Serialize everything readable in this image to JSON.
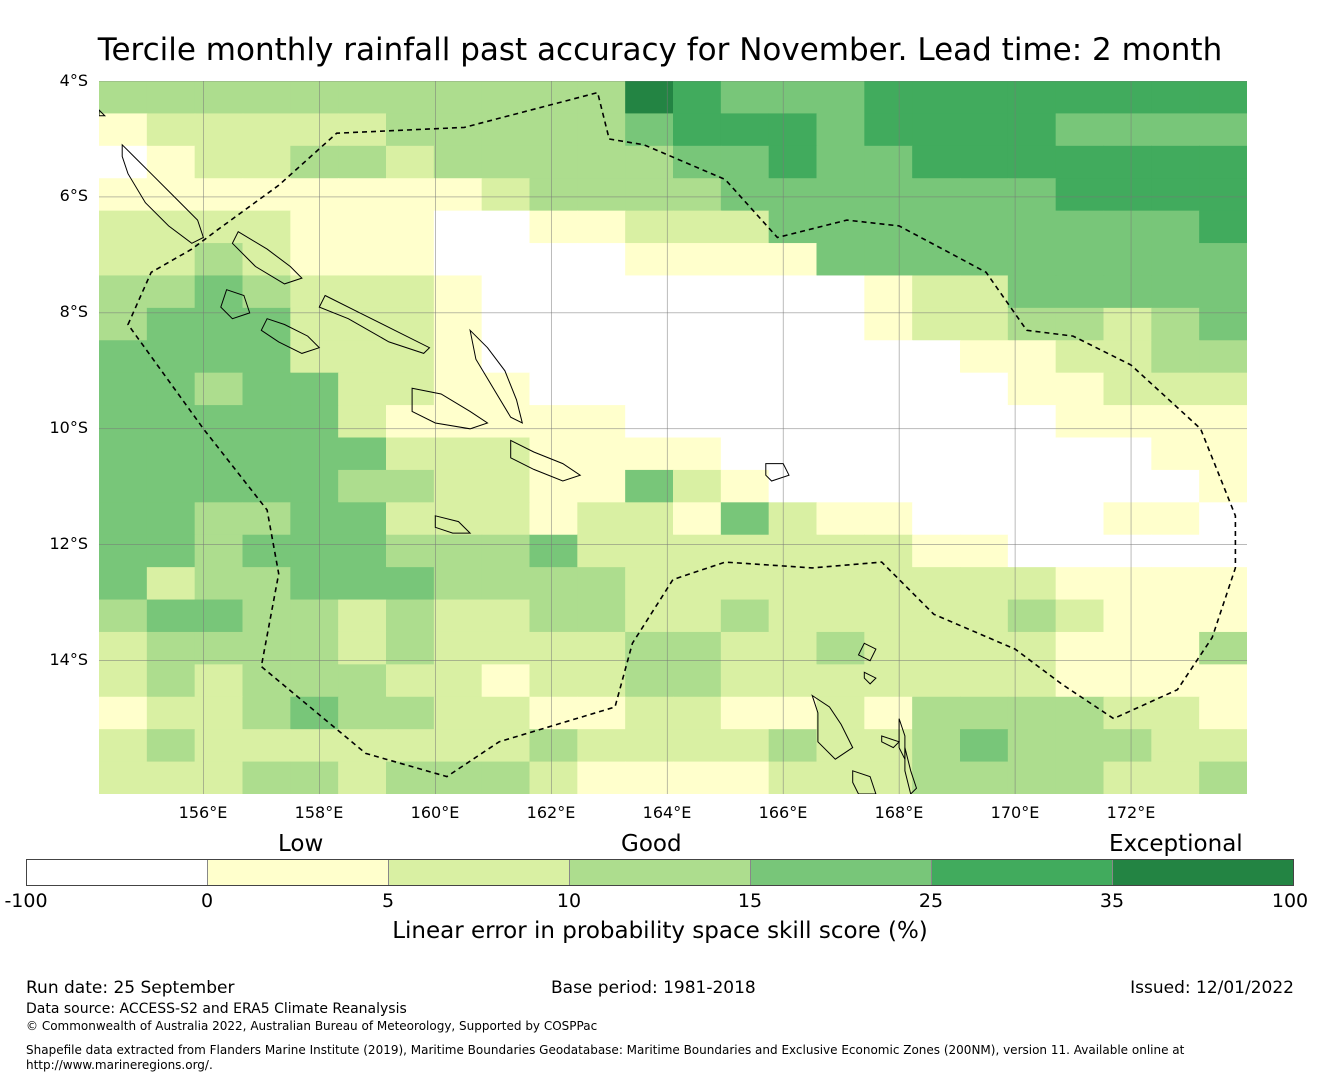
{
  "title": "Tercile monthly rainfall past accuracy for November. Lead time: 2 month",
  "map": {
    "lat_labels": [
      "4°S",
      "6°S",
      "8°S",
      "10°S",
      "12°S",
      "14°S"
    ],
    "lon_labels": [
      "156°E",
      "158°E",
      "160°E",
      "162°E",
      "164°E",
      "166°E",
      "168°E",
      "170°E",
      "172°E"
    ],
    "lat_values": [
      -4,
      -6,
      -8,
      -10,
      -12,
      -14
    ],
    "lon_values": [
      156,
      158,
      160,
      162,
      164,
      166,
      168,
      170,
      172
    ],
    "extent": {
      "lon_min": 154.2,
      "lon_max": 174.0,
      "lat_top": -4.0,
      "lat_bottom": -16.3
    },
    "grid_cols": 24,
    "grid_rows": 22,
    "grid_note": "class per cell: 0=<0, 1=0-5, 2=5-10, 3=10-15, 4=15-25, 5=25-35, 6=35-100",
    "grid": [
      "333333333336544455555555",
      "122222333334555455554444",
      "012233233333445445555555",
      "111111112333344444445555",
      "222211100112224444444445",
      "223211100001111444444444",
      "334322210000000012244444",
      "344422210000000012233234",
      "444422210000000000112233",
      "443442211000000000011222",
      "444442111110000000001111",
      "444444222111100000000011",
      "444443322114210000000001",
      "443344222122142110000110",
      "443444333422222221100000",
      "423344433332222222221111",
      "344332322332232222232111",
      "233332322223322322221113",
      "232333221223322222221111",
      "122343322112211213333221",
      "232222222322223223433322",
      "222332333211112223333223"
    ],
    "eez_boundary": [
      [
        154.7,
        -8.2
      ],
      [
        155.1,
        -7.3
      ],
      [
        155.8,
        -6.9
      ],
      [
        156.2,
        -6.6
      ],
      [
        157.3,
        -5.8
      ],
      [
        158.3,
        -4.9
      ],
      [
        160.5,
        -4.8
      ],
      [
        162.8,
        -4.2
      ],
      [
        163.0,
        -5.0
      ],
      [
        163.6,
        -5.1
      ],
      [
        165.0,
        -5.7
      ],
      [
        165.9,
        -6.7
      ],
      [
        167.1,
        -6.4
      ],
      [
        168.0,
        -6.5
      ],
      [
        169.5,
        -7.3
      ],
      [
        170.2,
        -8.3
      ],
      [
        171.0,
        -8.4
      ],
      [
        172.0,
        -8.9
      ],
      [
        173.2,
        -10.0
      ],
      [
        173.8,
        -11.5
      ],
      [
        173.8,
        -12.4
      ],
      [
        173.4,
        -13.6
      ],
      [
        172.8,
        -14.5
      ],
      [
        171.7,
        -15.0
      ],
      [
        170.8,
        -14.4
      ],
      [
        170.0,
        -13.8
      ],
      [
        168.6,
        -13.2
      ],
      [
        167.7,
        -12.3
      ],
      [
        166.5,
        -12.4
      ],
      [
        165.0,
        -12.3
      ],
      [
        164.1,
        -12.6
      ],
      [
        163.4,
        -13.7
      ],
      [
        163.1,
        -14.8
      ],
      [
        161.1,
        -15.4
      ],
      [
        160.2,
        -16.0
      ],
      [
        158.8,
        -15.6
      ],
      [
        157.0,
        -14.1
      ],
      [
        157.3,
        -12.5
      ],
      [
        157.1,
        -11.4
      ],
      [
        156.0,
        -10.0
      ],
      [
        154.7,
        -8.2
      ]
    ],
    "islands": [
      {
        "name": "Bougainville",
        "points": [
          [
            154.6,
            -5.1
          ],
          [
            154.8,
            -5.3
          ],
          [
            155.1,
            -5.6
          ],
          [
            155.5,
            -6.0
          ],
          [
            155.9,
            -6.4
          ],
          [
            156.0,
            -6.7
          ],
          [
            155.8,
            -6.8
          ],
          [
            155.4,
            -6.5
          ],
          [
            155.0,
            -6.1
          ],
          [
            154.7,
            -5.6
          ],
          [
            154.6,
            -5.3
          ]
        ]
      },
      {
        "name": "Choiseul",
        "points": [
          [
            156.6,
            -6.6
          ],
          [
            157.1,
            -6.9
          ],
          [
            157.5,
            -7.2
          ],
          [
            157.7,
            -7.4
          ],
          [
            157.4,
            -7.5
          ],
          [
            156.9,
            -7.2
          ],
          [
            156.5,
            -6.8
          ]
        ]
      },
      {
        "name": "Santa Isabel",
        "points": [
          [
            158.1,
            -7.7
          ],
          [
            158.7,
            -8.0
          ],
          [
            159.3,
            -8.3
          ],
          [
            159.9,
            -8.6
          ],
          [
            159.8,
            -8.7
          ],
          [
            159.2,
            -8.5
          ],
          [
            158.5,
            -8.1
          ],
          [
            158.0,
            -7.9
          ]
        ]
      },
      {
        "name": "New Georgia",
        "points": [
          [
            157.1,
            -8.1
          ],
          [
            157.4,
            -8.2
          ],
          [
            157.8,
            -8.4
          ],
          [
            158.0,
            -8.6
          ],
          [
            157.7,
            -8.7
          ],
          [
            157.3,
            -8.5
          ],
          [
            157.0,
            -8.3
          ]
        ]
      },
      {
        "name": "Vella Lavella",
        "points": [
          [
            156.4,
            -7.6
          ],
          [
            156.7,
            -7.7
          ],
          [
            156.8,
            -8.0
          ],
          [
            156.5,
            -8.1
          ],
          [
            156.3,
            -7.9
          ]
        ]
      },
      {
        "name": "Guadalcanal",
        "points": [
          [
            159.6,
            -9.3
          ],
          [
            160.1,
            -9.4
          ],
          [
            160.6,
            -9.7
          ],
          [
            160.9,
            -9.9
          ],
          [
            160.6,
            -10.0
          ],
          [
            160.0,
            -9.9
          ],
          [
            159.6,
            -9.7
          ]
        ]
      },
      {
        "name": "Malaita",
        "points": [
          [
            160.6,
            -8.3
          ],
          [
            160.9,
            -8.6
          ],
          [
            161.2,
            -9.0
          ],
          [
            161.4,
            -9.5
          ],
          [
            161.5,
            -9.9
          ],
          [
            161.3,
            -9.8
          ],
          [
            161.0,
            -9.3
          ],
          [
            160.7,
            -8.8
          ]
        ]
      },
      {
        "name": "Makira",
        "points": [
          [
            161.3,
            -10.2
          ],
          [
            161.7,
            -10.4
          ],
          [
            162.2,
            -10.6
          ],
          [
            162.5,
            -10.8
          ],
          [
            162.2,
            -10.9
          ],
          [
            161.7,
            -10.7
          ],
          [
            161.3,
            -10.5
          ]
        ]
      },
      {
        "name": "Rennell",
        "points": [
          [
            160.0,
            -11.5
          ],
          [
            160.4,
            -11.6
          ],
          [
            160.6,
            -11.8
          ],
          [
            160.3,
            -11.8
          ],
          [
            160.0,
            -11.7
          ]
        ]
      },
      {
        "name": "Nendo",
        "points": [
          [
            165.7,
            -10.6
          ],
          [
            166.0,
            -10.6
          ],
          [
            166.1,
            -10.8
          ],
          [
            165.8,
            -10.9
          ],
          [
            165.7,
            -10.8
          ]
        ]
      },
      {
        "name": "Espiritu Santo",
        "points": [
          [
            166.5,
            -14.6
          ],
          [
            166.8,
            -14.8
          ],
          [
            167.0,
            -15.1
          ],
          [
            167.2,
            -15.5
          ],
          [
            166.9,
            -15.7
          ],
          [
            166.6,
            -15.4
          ],
          [
            166.6,
            -14.9
          ]
        ]
      },
      {
        "name": "Malakula",
        "points": [
          [
            167.2,
            -15.9
          ],
          [
            167.5,
            -16.0
          ],
          [
            167.6,
            -16.3
          ],
          [
            167.3,
            -16.3
          ],
          [
            167.2,
            -16.1
          ]
        ]
      },
      {
        "name": "Maewo",
        "points": [
          [
            168.0,
            -15.0
          ],
          [
            168.1,
            -15.3
          ],
          [
            168.1,
            -15.7
          ],
          [
            168.0,
            -15.5
          ]
        ]
      },
      {
        "name": "Pentecost",
        "points": [
          [
            168.1,
            -15.5
          ],
          [
            168.2,
            -15.9
          ],
          [
            168.3,
            -16.2
          ],
          [
            168.2,
            -16.3
          ],
          [
            168.1,
            -15.9
          ]
        ]
      },
      {
        "name": "Vanua Lava",
        "points": [
          [
            167.4,
            -13.7
          ],
          [
            167.6,
            -13.8
          ],
          [
            167.5,
            -14.0
          ],
          [
            167.3,
            -13.9
          ]
        ]
      },
      {
        "name": "Gaua",
        "points": [
          [
            167.4,
            -14.2
          ],
          [
            167.6,
            -14.3
          ],
          [
            167.5,
            -14.4
          ],
          [
            167.4,
            -14.3
          ]
        ]
      },
      {
        "name": "Ambae",
        "points": [
          [
            167.7,
            -15.3
          ],
          [
            168.0,
            -15.4
          ],
          [
            167.9,
            -15.5
          ],
          [
            167.7,
            -15.4
          ]
        ]
      },
      {
        "name": "New Ireland",
        "points": [
          [
            154.2,
            -4.5
          ],
          [
            154.3,
            -4.6
          ],
          [
            154.2,
            -4.6
          ]
        ]
      }
    ]
  },
  "qualitative_labels": {
    "low": "Low",
    "good": "Good",
    "exceptional": "Exceptional"
  },
  "colorbar": {
    "colors": [
      "#ffffff",
      "#ffffcc",
      "#d9f0a3",
      "#addd8e",
      "#78c679",
      "#41ab5d",
      "#238443"
    ],
    "ticks": [
      "-100",
      "0",
      "5",
      "10",
      "15",
      "25",
      "35",
      "100"
    ],
    "label": "Linear error in probability space skill score (%)"
  },
  "footer": {
    "run_date": "Run date: 25 September",
    "base_period": "Base period: 1981-2018",
    "issued": "Issued: 12/01/2022",
    "data_source": "Data source: ACCESS-S2 and ERA5 Climate Reanalysis",
    "copyright": "© Commonwealth of Australia 2022, Australian Bureau of Meteorology, Supported by COSPPac",
    "shapefile_line1": "Shapefile data extracted from Flanders Marine Institute (2019), Maritime Boundaries Geodatabase: Maritime Boundaries and Exclusive Economic Zones (200NM), version 11. Available online at",
    "shapefile_line2": "http://www.marineregions.org/."
  }
}
